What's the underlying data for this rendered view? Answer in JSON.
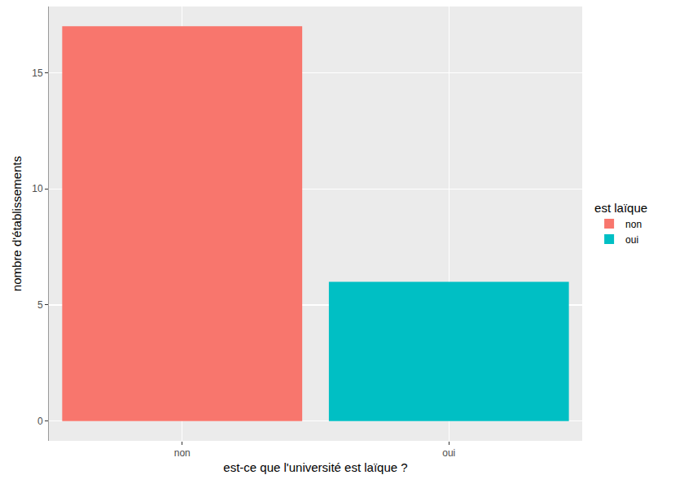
{
  "chart_data": {
    "type": "bar",
    "x_label": "est-ce que l'université est laïque ?",
    "y_label": "nombre d'établissements",
    "legend_title": "est laïque",
    "categories": [
      "non",
      "oui"
    ],
    "series": [
      {
        "name": "non",
        "color": "#F8766D",
        "values": [
          17,
          null
        ]
      },
      {
        "name": "oui",
        "color": "#00BFC4",
        "values": [
          null,
          6
        ]
      }
    ],
    "ylim": [
      -0.85,
      17.85
    ],
    "yticks": [
      0,
      5,
      10,
      15
    ],
    "grid": true,
    "legend": "right"
  }
}
